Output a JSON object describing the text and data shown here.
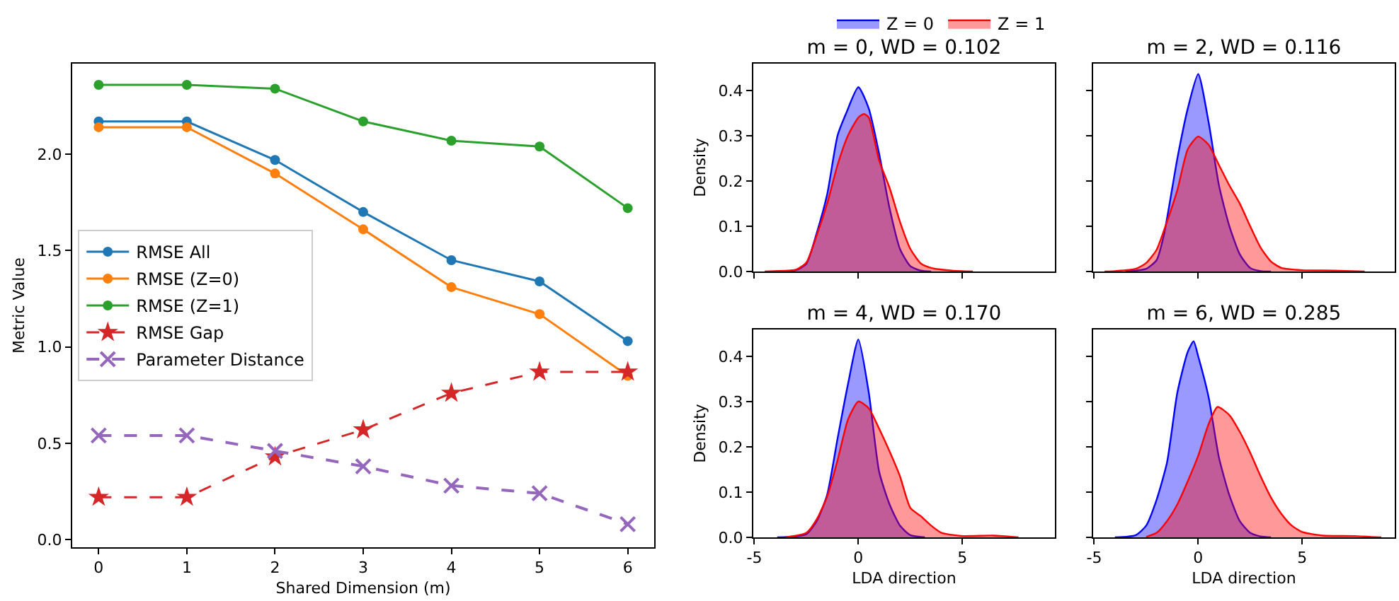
{
  "chart_data": [
    {
      "type": "line",
      "xlabel": "Shared Dimension (m)",
      "ylabel": "Metric Value",
      "x": [
        0,
        1,
        2,
        3,
        4,
        5,
        6
      ],
      "xlim": [
        -0.3,
        6.3
      ],
      "xticks": [
        0,
        1,
        2,
        3,
        4,
        5,
        6
      ],
      "ylim": [
        -0.04,
        2.47
      ],
      "yticks": [
        {
          "value": 0,
          "label": "0.0"
        },
        0.5,
        {
          "value": 1,
          "label": "1.0"
        },
        1.5,
        {
          "value": 2,
          "label": "2.0"
        }
      ],
      "grid": false,
      "legend": "center left",
      "series": [
        {
          "name": "RMSE All",
          "color": "#1f77b4",
          "marker": "circle",
          "line_style": "solid",
          "values": [
            2.17,
            2.17,
            1.97,
            1.7,
            1.45,
            1.34,
            1.03
          ]
        },
        {
          "name": "RMSE (Z=0)",
          "color": "#ff7f0e",
          "marker": "circle",
          "line_style": "solid",
          "values": [
            2.14,
            2.14,
            1.9,
            1.61,
            1.31,
            1.17,
            0.85
          ]
        },
        {
          "name": "RMSE (Z=1)",
          "color": "#2ca02c",
          "marker": "circle",
          "line_style": "solid",
          "values": [
            2.36,
            2.36,
            2.34,
            2.17,
            2.07,
            2.04,
            1.72
          ]
        },
        {
          "name": "RMSE Gap",
          "color": "#d62728",
          "marker": "star",
          "line_style": "dashed",
          "values": [
            0.22,
            0.22,
            0.43,
            0.57,
            0.76,
            0.87,
            0.87
          ]
        },
        {
          "name": "Parameter Distance",
          "color": "#9467bd",
          "marker": "cross",
          "line_style": "dashed",
          "values": [
            0.54,
            0.54,
            0.46,
            0.38,
            0.28,
            0.24,
            0.08
          ]
        }
      ]
    },
    {
      "type": "area",
      "title": "m = 0, WD = 0.102",
      "ylabel": "Density",
      "xlim": [
        -5.05,
        9.45
      ],
      "xticks": [
        -5,
        0,
        5
      ],
      "ylim": [
        0,
        0.459
      ],
      "yticks": [
        {
          "value": 0,
          "label": "0.0"
        },
        0.1,
        0.2,
        0.3,
        0.4
      ],
      "tick_labels": "y",
      "grid": false,
      "legend": "top",
      "series": [
        {
          "name": "Z = 0",
          "color": "#0000ff",
          "x": [
            -4,
            -3,
            -2.5,
            -2,
            -1.5,
            -1,
            -0.58,
            0,
            0.5,
            1,
            1.5,
            2,
            2.5,
            3,
            3.5
          ],
          "values": [
            0,
            0.003,
            0.017,
            0.085,
            0.17,
            0.3,
            0.35,
            0.407,
            0.36,
            0.26,
            0.14,
            0.05,
            0.012,
            0.002,
            0
          ]
        },
        {
          "name": "Z = 1",
          "color": "#ff0000",
          "x": [
            -4.5,
            -4,
            -3,
            -2.5,
            -2,
            -1.5,
            -1,
            -0.5,
            0,
            0.27,
            0.5,
            1,
            1.5,
            2,
            2.5,
            3,
            3.5,
            4.5,
            5.5
          ],
          "values": [
            0,
            0.001,
            0.004,
            0.02,
            0.08,
            0.15,
            0.235,
            0.3,
            0.34,
            0.348,
            0.34,
            0.245,
            0.185,
            0.11,
            0.05,
            0.018,
            0.008,
            0.002,
            0
          ]
        }
      ]
    },
    {
      "type": "area",
      "title": "m = 2, WD = 0.116",
      "xlim": [
        -5.05,
        9.45
      ],
      "xticks": [
        -5,
        0,
        5
      ],
      "ylim": [
        0,
        0.459
      ],
      "yticks": [
        0,
        0.1,
        0.2,
        0.3,
        0.4
      ],
      "tick_labels": false,
      "grid": false,
      "series": [
        {
          "color": "#0000ff",
          "x": [
            -3.5,
            -3,
            -2.5,
            -2,
            -1.65,
            -1,
            -0.5,
            0,
            0.5,
            1,
            1.5,
            2,
            2.5,
            3,
            3.5
          ],
          "values": [
            0,
            0.002,
            0.006,
            0.025,
            0.08,
            0.25,
            0.36,
            0.436,
            0.33,
            0.19,
            0.1,
            0.038,
            0.008,
            0.001,
            0
          ]
        },
        {
          "color": "#ff0000",
          "x": [
            -4.5,
            -4,
            -3,
            -2.5,
            -2,
            -1.5,
            -1,
            -0.5,
            0,
            0.5,
            1,
            1.5,
            2,
            2.5,
            3,
            3.5,
            4,
            5,
            6.5,
            8
          ],
          "values": [
            0,
            0.001,
            0.006,
            0.019,
            0.048,
            0.11,
            0.18,
            0.27,
            0.298,
            0.28,
            0.235,
            0.19,
            0.15,
            0.1,
            0.053,
            0.022,
            0.008,
            0.003,
            0.002,
            0
          ]
        }
      ]
    },
    {
      "type": "area",
      "title": "m = 4, WD = 0.170",
      "xlabel": "LDA direction",
      "ylabel": "Density",
      "xlim": [
        -5.05,
        9.45
      ],
      "xticks": [
        -5,
        0,
        5
      ],
      "ylim": [
        0,
        0.459
      ],
      "yticks": [
        {
          "value": 0,
          "label": "0.0"
        },
        0.1,
        0.2,
        0.3,
        0.4
      ],
      "grid": false,
      "series": [
        {
          "color": "#0000ff",
          "x": [
            -3.9,
            -3,
            -2.5,
            -2,
            -1.5,
            -1,
            -0.5,
            0,
            0.5,
            1,
            1.5,
            2,
            2.5,
            3.2
          ],
          "values": [
            0,
            0.002,
            0.007,
            0.036,
            0.094,
            0.218,
            0.338,
            0.437,
            0.32,
            0.145,
            0.073,
            0.026,
            0.005,
            0
          ]
        },
        {
          "color": "#ff0000",
          "x": [
            -3.5,
            -2.5,
            -2,
            -1.5,
            -1,
            -0.5,
            0,
            0.5,
            1,
            1.5,
            2,
            2.5,
            3,
            3.5,
            4,
            5,
            6.5,
            7.7
          ],
          "values": [
            0,
            0.01,
            0.04,
            0.09,
            0.17,
            0.26,
            0.3,
            0.285,
            0.24,
            0.19,
            0.135,
            0.065,
            0.047,
            0.026,
            0.01,
            0.003,
            0.004,
            0
          ]
        }
      ]
    },
    {
      "type": "area",
      "title": "m = 6, WD = 0.285",
      "xlabel": "LDA direction",
      "xlim": [
        -5.05,
        9.45
      ],
      "xticks": [
        -5,
        0,
        5
      ],
      "ylim": [
        0,
        0.459
      ],
      "yticks": [
        0,
        0.1,
        0.2,
        0.3,
        0.4
      ],
      "tick_labels": "x",
      "grid": false,
      "series": [
        {
          "color": "#0000ff",
          "x": [
            -4,
            -3,
            -2.5,
            -2,
            -1.5,
            -1,
            -0.5,
            -0.22,
            0,
            0.5,
            1,
            1.5,
            2,
            2.5,
            3,
            3.5
          ],
          "values": [
            0,
            0.005,
            0.026,
            0.083,
            0.165,
            0.32,
            0.41,
            0.433,
            0.4,
            0.31,
            0.176,
            0.093,
            0.036,
            0.01,
            0.002,
            0
          ]
        },
        {
          "color": "#ff0000",
          "x": [
            -2.5,
            -2,
            -1.5,
            -1,
            -0.5,
            0,
            0.5,
            0.93,
            1.5,
            2,
            2.5,
            3,
            3.5,
            4,
            4.5,
            5,
            6,
            7.5,
            8.8
          ],
          "values": [
            0.001,
            0.01,
            0.036,
            0.073,
            0.124,
            0.18,
            0.25,
            0.288,
            0.27,
            0.233,
            0.187,
            0.135,
            0.088,
            0.052,
            0.026,
            0.012,
            0.004,
            0.003,
            0
          ]
        }
      ]
    }
  ]
}
